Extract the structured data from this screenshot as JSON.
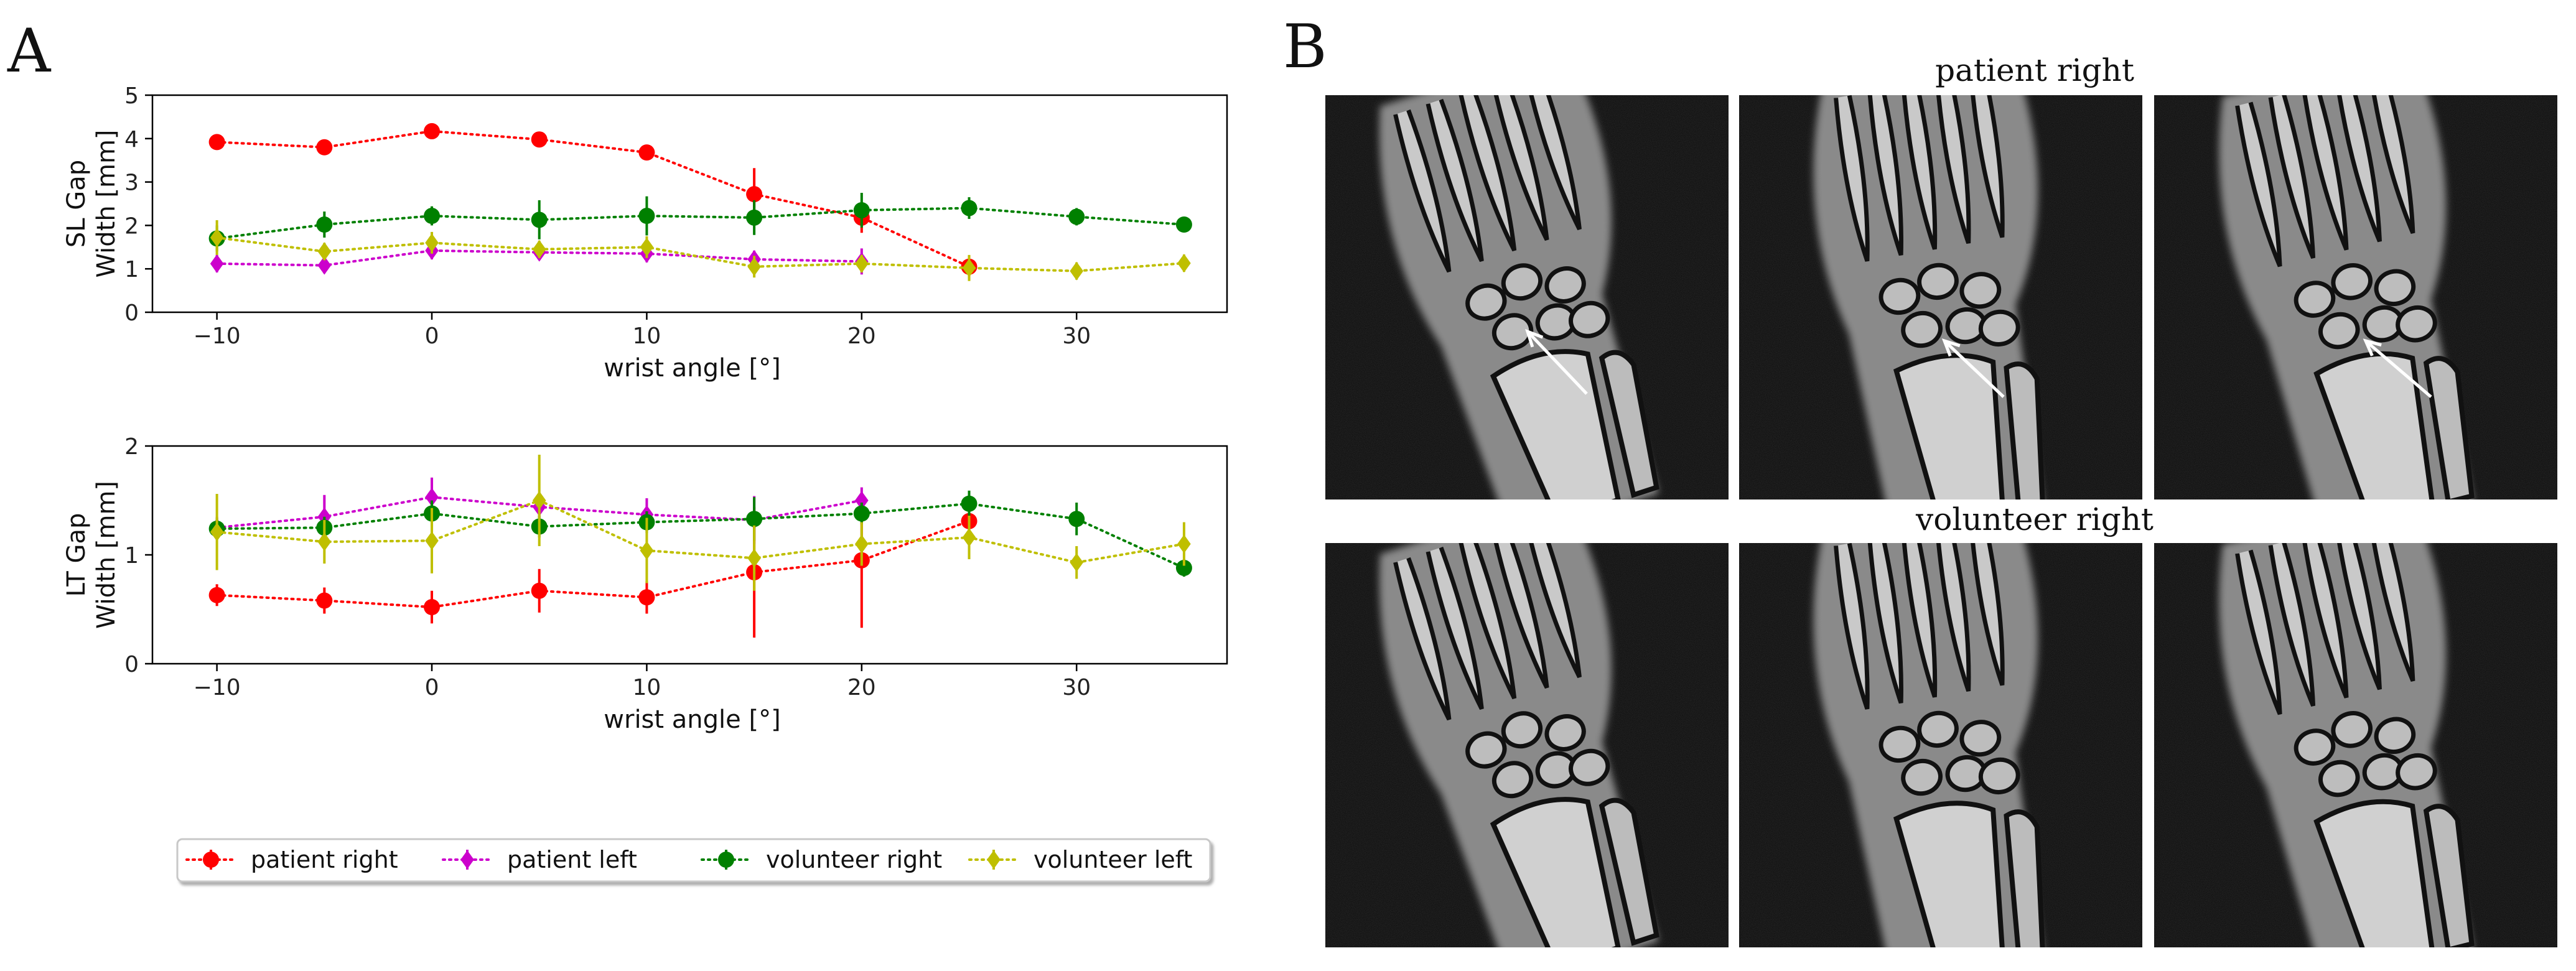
{
  "panels": {
    "a": "A",
    "b": "B"
  },
  "chart_data": [
    {
      "type": "line",
      "xlabel": "wrist angle [°]",
      "ylabel_lines": [
        "SL Gap",
        "Width [mm]"
      ],
      "xlim": [
        -13,
        37
      ],
      "ylim": [
        0,
        5
      ],
      "xticks": [
        -10,
        0,
        10,
        20,
        30
      ],
      "xtick_labels": [
        "−10",
        "0",
        "10",
        "20",
        "30"
      ],
      "yticks": [
        0,
        1,
        2,
        3,
        4,
        5
      ],
      "ytick_labels": [
        "0",
        "1",
        "2",
        "3",
        "4",
        "5"
      ],
      "grid": false,
      "series": [
        {
          "name": "patient right",
          "color": "#ff0000",
          "marker": "circle",
          "x": [
            -10,
            -5,
            0,
            5,
            10,
            15,
            20,
            25
          ],
          "y": [
            3.92,
            3.8,
            4.17,
            3.98,
            3.68,
            2.72,
            2.18,
            1.05
          ],
          "err": [
            0.08,
            0.07,
            0.08,
            0.08,
            0.15,
            0.6,
            0.35,
            0.25
          ]
        },
        {
          "name": "patient left",
          "color": "#cc00cc",
          "marker": "diamond",
          "x": [
            -10,
            -5,
            0,
            5,
            10,
            15,
            20
          ],
          "y": [
            1.12,
            1.08,
            1.42,
            1.38,
            1.35,
            1.22,
            1.17
          ],
          "err": [
            0.2,
            0.18,
            0.2,
            0.18,
            0.2,
            0.2,
            0.3
          ]
        },
        {
          "name": "volunteer right",
          "color": "#008000",
          "marker": "circle",
          "x": [
            -10,
            -5,
            0,
            5,
            10,
            15,
            20,
            25,
            30,
            35
          ],
          "y": [
            1.7,
            2.02,
            2.22,
            2.13,
            2.22,
            2.18,
            2.35,
            2.4,
            2.2,
            2.02
          ],
          "err": [
            0.3,
            0.3,
            0.22,
            0.45,
            0.45,
            0.4,
            0.4,
            0.25,
            0.2,
            0.08
          ]
        },
        {
          "name": "volunteer left",
          "color": "#bfbf00",
          "marker": "diamond",
          "x": [
            -10,
            -5,
            0,
            5,
            10,
            15,
            20,
            25,
            30,
            35
          ],
          "y": [
            1.72,
            1.4,
            1.6,
            1.45,
            1.5,
            1.05,
            1.12,
            1.02,
            0.95,
            1.13
          ],
          "err": [
            0.4,
            0.2,
            0.25,
            0.2,
            0.25,
            0.25,
            0.2,
            0.3,
            0.2,
            0.2
          ]
        }
      ]
    },
    {
      "type": "line",
      "xlabel": "wrist angle [°]",
      "ylabel_lines": [
        "LT Gap",
        "Width [mm]"
      ],
      "xlim": [
        -13,
        37
      ],
      "ylim": [
        0,
        2
      ],
      "xticks": [
        -10,
        0,
        10,
        20,
        30
      ],
      "xtick_labels": [
        "−10",
        "0",
        "10",
        "20",
        "30"
      ],
      "yticks": [
        0,
        1,
        2
      ],
      "ytick_labels": [
        "0",
        "1",
        "2"
      ],
      "grid": false,
      "series": [
        {
          "name": "patient right",
          "color": "#ff0000",
          "marker": "circle",
          "x": [
            -10,
            -5,
            0,
            5,
            10,
            15,
            20,
            25
          ],
          "y": [
            0.63,
            0.58,
            0.52,
            0.67,
            0.61,
            0.84,
            0.95,
            1.31
          ],
          "err": [
            0.1,
            0.12,
            0.15,
            0.2,
            0.15,
            0.6,
            0.62,
            0.1
          ]
        },
        {
          "name": "patient left",
          "color": "#cc00cc",
          "marker": "diamond",
          "x": [
            -10,
            -5,
            0,
            5,
            10,
            15,
            20
          ],
          "y": [
            1.25,
            1.35,
            1.53,
            1.44,
            1.37,
            1.32,
            1.5
          ],
          "err": [
            0.1,
            0.2,
            0.18,
            0.12,
            0.15,
            0.22,
            0.12
          ]
        },
        {
          "name": "volunteer right",
          "color": "#008000",
          "marker": "circle",
          "x": [
            -10,
            -5,
            0,
            5,
            10,
            15,
            20,
            25,
            30,
            35
          ],
          "y": [
            1.24,
            1.25,
            1.38,
            1.26,
            1.3,
            1.33,
            1.38,
            1.47,
            1.33,
            0.88
          ],
          "err": [
            0.1,
            0.1,
            0.12,
            0.1,
            0.1,
            0.2,
            0.1,
            0.12,
            0.15,
            0.08
          ]
        },
        {
          "name": "volunteer left",
          "color": "#bfbf00",
          "marker": "diamond",
          "x": [
            -10,
            -5,
            0,
            5,
            10,
            15,
            20,
            25,
            30,
            35
          ],
          "y": [
            1.21,
            1.12,
            1.13,
            1.5,
            1.04,
            0.97,
            1.1,
            1.16,
            0.93,
            1.1
          ],
          "err": [
            0.35,
            0.2,
            0.3,
            0.42,
            0.3,
            0.3,
            0.2,
            0.2,
            0.15,
            0.2
          ]
        }
      ]
    }
  ],
  "legend": {
    "placement": "bottom",
    "items": [
      "patient right",
      "patient left",
      "volunteer right",
      "volunteer left"
    ]
  },
  "image_rows": [
    {
      "title": "patient right",
      "images": [
        "mri-slice-1",
        "mri-slice-2",
        "mri-slice-3"
      ]
    },
    {
      "title": "volunteer right",
      "images": [
        "mri-slice-1",
        "mri-slice-2",
        "mri-slice-3"
      ]
    }
  ]
}
